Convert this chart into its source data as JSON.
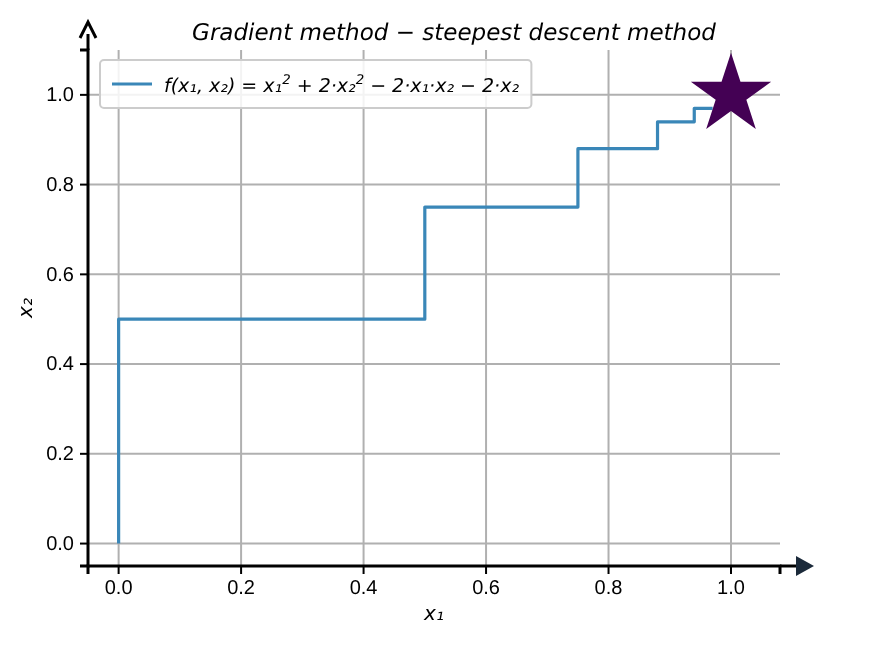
{
  "chart_data": {
    "type": "line",
    "title": "Gradient method − steepest descent method",
    "xlabel": "x₁",
    "ylabel": "x₂",
    "xlim": [
      -0.05,
      1.08
    ],
    "ylim": [
      -0.05,
      1.1
    ],
    "xticks": [
      {
        "value": 0,
        "label": "0.0"
      },
      {
        "value": 0.2,
        "label": "0.2"
      },
      {
        "value": 0.4,
        "label": "0.4"
      },
      {
        "value": 0.6,
        "label": "0.6"
      },
      {
        "value": 0.8,
        "label": "0.8"
      },
      {
        "value": 1,
        "label": "1.0"
      }
    ],
    "yticks": [
      {
        "value": 0,
        "label": "0.0"
      },
      {
        "value": 0.2,
        "label": "0.2"
      },
      {
        "value": 0.4,
        "label": "0.4"
      },
      {
        "value": 0.6,
        "label": "0.6"
      },
      {
        "value": 0.8,
        "label": "0.8"
      },
      {
        "value": 1,
        "label": "1.0"
      }
    ],
    "grid": true,
    "legend": "top left",
    "series": [
      {
        "name": "f(x₁, x₂) = x₁$^{2}$ + 2·x₂$^{2}$ − 2·x₁·x₂ − 2·x₂",
        "color": "#3a87b8",
        "line_style": "solid",
        "marker": "none",
        "x": [
          0,
          0,
          0.5,
          0.5,
          0.75,
          0.75,
          0.88,
          0.88,
          0.94,
          0.94,
          0.97
        ],
        "values": [
          0,
          0.5,
          0.5,
          0.75,
          0.75,
          0.88,
          0.88,
          0.94,
          0.94,
          0.97,
          0.97
        ]
      },
      {
        "type": "scatter",
        "color": "#440154",
        "marker": "star",
        "x": [
          1
        ],
        "values": [
          1
        ]
      }
    ]
  }
}
